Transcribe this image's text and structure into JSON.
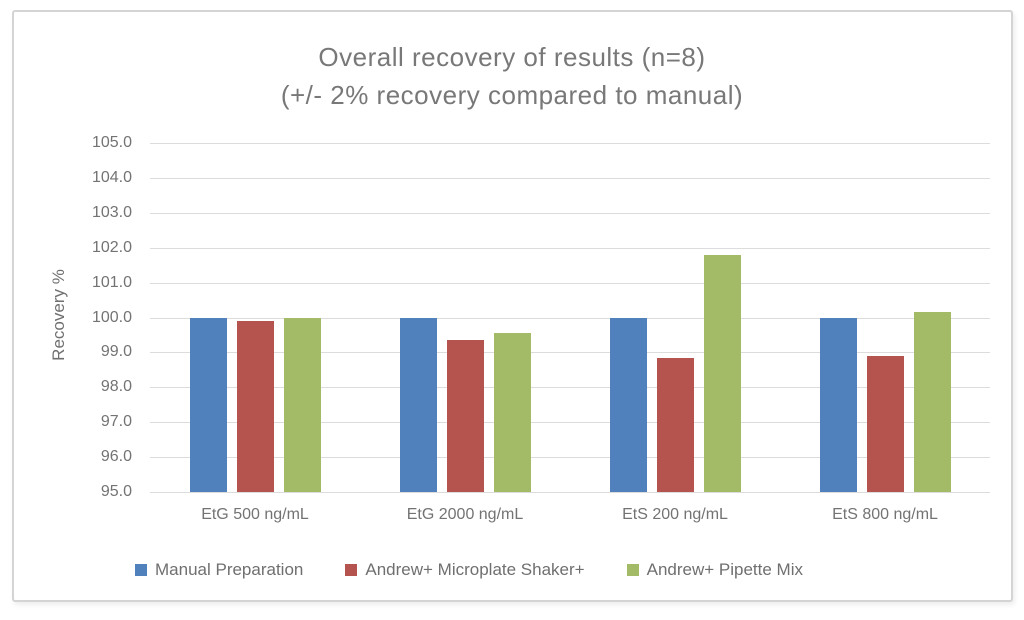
{
  "chart_data": {
    "type": "bar",
    "title": "Overall recovery of results (n=8)",
    "subtitle": "(+/- 2% recovery compared to manual)",
    "ylabel": "Recovery %",
    "xlabel": "",
    "ylim": [
      95.0,
      105.0
    ],
    "ytick_step": 1.0,
    "ytick_labels": [
      "105.0",
      "104.0",
      "103.0",
      "102.0",
      "101.0",
      "100.0",
      "99.0",
      "98.0",
      "97.0",
      "96.0",
      "95.0"
    ],
    "grid": true,
    "legend_position": "bottom",
    "categories": [
      "EtG 500 ng/mL",
      "EtG 2000 ng/mL",
      "EtS 200 ng/mL",
      "EtS 800 ng/mL"
    ],
    "series": [
      {
        "name": "Manual Preparation",
        "color": "#5181BD",
        "values": [
          100.0,
          100.0,
          100.0,
          100.0
        ]
      },
      {
        "name": "Andrew+ Microplate Shaker+",
        "color": "#B5534F",
        "values": [
          99.9,
          99.35,
          98.85,
          98.9
        ]
      },
      {
        "name": "Andrew+ Pipette Mix",
        "color": "#A3BB66",
        "values": [
          100.0,
          99.55,
          101.8,
          100.15
        ]
      }
    ],
    "colors": {
      "gridline": "#dcdcdc",
      "axis_text": "#737373",
      "title_text": "#787878",
      "frame_border": "#d4d4d4"
    }
  }
}
